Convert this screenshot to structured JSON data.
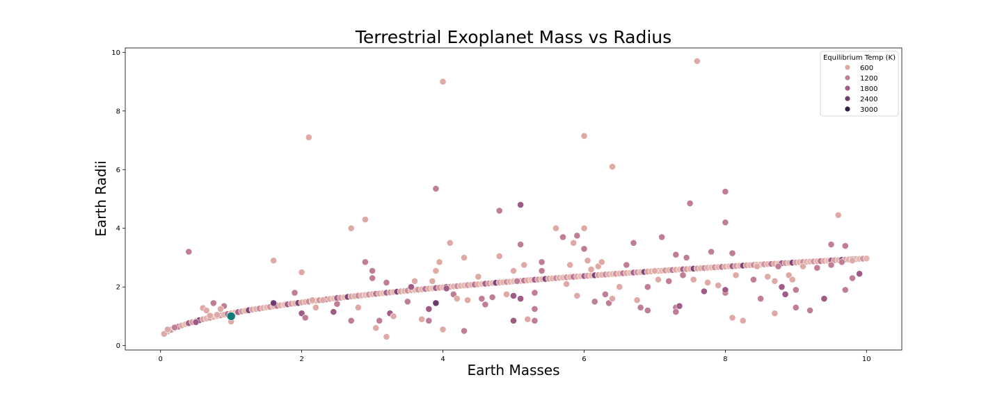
{
  "chart_data": {
    "type": "scatter",
    "title": "Terrestrial Exoplanet Mass vs Radius",
    "xlabel": "Earth Masses",
    "ylabel": "Earth Radii",
    "xlim": [
      -0.5,
      10.5
    ],
    "ylim": [
      -0.15,
      10.15
    ],
    "x_ticks": [
      "0",
      "2",
      "4",
      "6",
      "8",
      "10"
    ],
    "y_ticks": [
      "0",
      "2",
      "4",
      "6",
      "8",
      "10"
    ],
    "grid": false,
    "legend": {
      "title": "Equilibrium Temp (K)",
      "placement": "top-right",
      "entries": [
        {
          "label": "600",
          "color": "#dfaaa5"
        },
        {
          "label": "1200",
          "color": "#c07d96"
        },
        {
          "label": "1800",
          "color": "#a05a86"
        },
        {
          "label": "2400",
          "color": "#6e3a6d"
        },
        {
          "label": "3000",
          "color": "#2e1e3b"
        }
      ]
    },
    "curve": {
      "description_shown": false,
      "x_start": 0.05,
      "x_end": 10.0,
      "step": 0.05,
      "exponent": 0.5,
      "offset": 0.18
    },
    "highlight_point": {
      "x": 1.0,
      "y": 1.0,
      "color": "#0e7c78"
    },
    "scatter_points": [
      [
        0.05,
        0.4,
        600
      ],
      [
        0.1,
        0.55,
        600
      ],
      [
        0.2,
        0.62,
        1200
      ],
      [
        0.4,
        3.2,
        1200
      ],
      [
        0.5,
        0.8,
        1800
      ],
      [
        0.6,
        1.28,
        600
      ],
      [
        0.65,
        1.2,
        600
      ],
      [
        0.7,
        1.02,
        600
      ],
      [
        0.75,
        1.45,
        1200
      ],
      [
        0.8,
        1.05,
        600
      ],
      [
        0.9,
        1.35,
        1200
      ],
      [
        0.85,
        1.25,
        600
      ],
      [
        1.0,
        0.82,
        600
      ],
      [
        1.6,
        1.45,
        2400
      ],
      [
        1.6,
        2.9,
        600
      ],
      [
        1.9,
        1.8,
        1200
      ],
      [
        2.0,
        2.5,
        600
      ],
      [
        2.0,
        1.1,
        1800
      ],
      [
        2.05,
        0.95,
        1200
      ],
      [
        2.1,
        7.1,
        600
      ],
      [
        2.15,
        1.55,
        600
      ],
      [
        2.2,
        1.3,
        600
      ],
      [
        2.3,
        1.55,
        600
      ],
      [
        2.45,
        1.15,
        1800
      ],
      [
        2.5,
        1.42,
        1200
      ],
      [
        2.7,
        4.0,
        600
      ],
      [
        2.7,
        0.85,
        1200
      ],
      [
        2.8,
        1.3,
        600
      ],
      [
        2.9,
        2.85,
        1200
      ],
      [
        2.9,
        4.3,
        600
      ],
      [
        3.0,
        2.55,
        1200
      ],
      [
        3.0,
        2.3,
        1200
      ],
      [
        3.05,
        0.6,
        600
      ],
      [
        3.1,
        0.85,
        1200
      ],
      [
        3.2,
        0.3,
        600
      ],
      [
        3.2,
        2.15,
        1200
      ],
      [
        3.25,
        1.1,
        1800
      ],
      [
        3.3,
        1.0,
        600
      ],
      [
        3.5,
        1.5,
        1200
      ],
      [
        3.55,
        2.0,
        1800
      ],
      [
        3.6,
        2.2,
        600
      ],
      [
        3.7,
        0.9,
        600
      ],
      [
        3.8,
        0.85,
        1200
      ],
      [
        3.8,
        1.25,
        1800
      ],
      [
        3.85,
        2.2,
        600
      ],
      [
        3.9,
        5.35,
        1200
      ],
      [
        3.9,
        2.55,
        600
      ],
      [
        3.9,
        1.45,
        2400
      ],
      [
        3.95,
        2.85,
        600
      ],
      [
        4.0,
        9.0,
        600
      ],
      [
        4.0,
        0.55,
        600
      ],
      [
        4.05,
        1.95,
        1800
      ],
      [
        4.1,
        3.5,
        600
      ],
      [
        4.15,
        1.75,
        1200
      ],
      [
        4.2,
        1.6,
        600
      ],
      [
        4.3,
        3.0,
        600
      ],
      [
        4.3,
        0.5,
        1200
      ],
      [
        4.35,
        1.55,
        600
      ],
      [
        4.5,
        2.35,
        600
      ],
      [
        4.55,
        1.6,
        1200
      ],
      [
        4.6,
        1.4,
        1200
      ],
      [
        4.7,
        1.65,
        1200
      ],
      [
        4.8,
        4.6,
        1200
      ],
      [
        4.8,
        3.05,
        600
      ],
      [
        4.9,
        1.75,
        600
      ],
      [
        5.0,
        2.55,
        600
      ],
      [
        5.0,
        1.7,
        1800
      ],
      [
        5.0,
        0.85,
        1800
      ],
      [
        5.05,
        2.2,
        1200
      ],
      [
        5.1,
        4.8,
        1800
      ],
      [
        5.1,
        3.45,
        1200
      ],
      [
        5.1,
        1.6,
        1800
      ],
      [
        5.15,
        2.75,
        600
      ],
      [
        5.2,
        0.9,
        600
      ],
      [
        5.3,
        1.25,
        1200
      ],
      [
        5.3,
        0.85,
        1200
      ],
      [
        5.3,
        1.8,
        1200
      ],
      [
        5.4,
        2.55,
        1200
      ],
      [
        5.4,
        2.85,
        1200
      ],
      [
        5.6,
        4.0,
        600
      ],
      [
        5.7,
        3.7,
        1200
      ],
      [
        5.75,
        2.1,
        600
      ],
      [
        5.8,
        2.75,
        600
      ],
      [
        5.85,
        3.5,
        600
      ],
      [
        5.9,
        3.75,
        1200
      ],
      [
        5.9,
        1.7,
        600
      ],
      [
        6.0,
        7.15,
        600
      ],
      [
        6.0,
        4.0,
        600
      ],
      [
        6.0,
        3.3,
        1200
      ],
      [
        6.05,
        2.9,
        600
      ],
      [
        6.1,
        2.6,
        600
      ],
      [
        6.15,
        1.5,
        1200
      ],
      [
        6.2,
        2.7,
        600
      ],
      [
        6.25,
        2.85,
        600
      ],
      [
        6.3,
        1.75,
        1200
      ],
      [
        6.35,
        1.45,
        1200
      ],
      [
        6.4,
        6.1,
        600
      ],
      [
        6.4,
        1.6,
        600
      ],
      [
        6.5,
        2.0,
        600
      ],
      [
        6.6,
        2.75,
        1200
      ],
      [
        6.7,
        3.5,
        1200
      ],
      [
        6.75,
        1.55,
        600
      ],
      [
        6.8,
        1.3,
        1200
      ],
      [
        6.9,
        1.2,
        1200
      ],
      [
        6.9,
        2.0,
        1200
      ],
      [
        7.0,
        2.55,
        600
      ],
      [
        7.05,
        2.25,
        600
      ],
      [
        7.1,
        3.7,
        1200
      ],
      [
        7.2,
        2.2,
        1200
      ],
      [
        7.3,
        3.1,
        1200
      ],
      [
        7.3,
        1.3,
        1200
      ],
      [
        7.3,
        1.15,
        1200
      ],
      [
        7.35,
        1.35,
        1800
      ],
      [
        7.4,
        2.4,
        1200
      ],
      [
        7.45,
        3.0,
        1200
      ],
      [
        7.5,
        4.85,
        1200
      ],
      [
        7.55,
        2.25,
        600
      ],
      [
        7.6,
        9.7,
        600
      ],
      [
        7.7,
        1.85,
        1800
      ],
      [
        7.75,
        2.15,
        600
      ],
      [
        7.8,
        3.2,
        1200
      ],
      [
        7.9,
        2.05,
        600
      ],
      [
        8.0,
        5.25,
        1200
      ],
      [
        8.0,
        4.2,
        1200
      ],
      [
        8.0,
        1.8,
        1200
      ],
      [
        8.0,
        1.9,
        1800
      ],
      [
        8.1,
        3.15,
        1200
      ],
      [
        8.1,
        0.95,
        600
      ],
      [
        8.15,
        2.4,
        600
      ],
      [
        8.25,
        0.85,
        600
      ],
      [
        8.4,
        2.25,
        1200
      ],
      [
        8.45,
        2.7,
        600
      ],
      [
        8.5,
        1.6,
        1200
      ],
      [
        8.6,
        2.35,
        600
      ],
      [
        8.7,
        2.2,
        600
      ],
      [
        8.7,
        1.1,
        600
      ],
      [
        8.75,
        2.7,
        1200
      ],
      [
        8.8,
        2.0,
        1800
      ],
      [
        8.85,
        1.75,
        1800
      ],
      [
        8.9,
        2.4,
        600
      ],
      [
        8.95,
        2.25,
        600
      ],
      [
        9.0,
        1.9,
        1200
      ],
      [
        9.0,
        1.3,
        1200
      ],
      [
        9.1,
        2.7,
        600
      ],
      [
        9.2,
        1.2,
        1200
      ],
      [
        9.3,
        2.65,
        1200
      ],
      [
        9.4,
        1.6,
        1800
      ],
      [
        9.5,
        2.75,
        1200
      ],
      [
        9.5,
        3.45,
        1200
      ],
      [
        9.6,
        4.45,
        600
      ],
      [
        9.65,
        2.85,
        1200
      ],
      [
        9.7,
        3.4,
        1200
      ],
      [
        9.7,
        1.9,
        1200
      ],
      [
        9.8,
        2.3,
        1200
      ],
      [
        9.8,
        2.9,
        600
      ],
      [
        9.9,
        2.45,
        1800
      ]
    ]
  }
}
